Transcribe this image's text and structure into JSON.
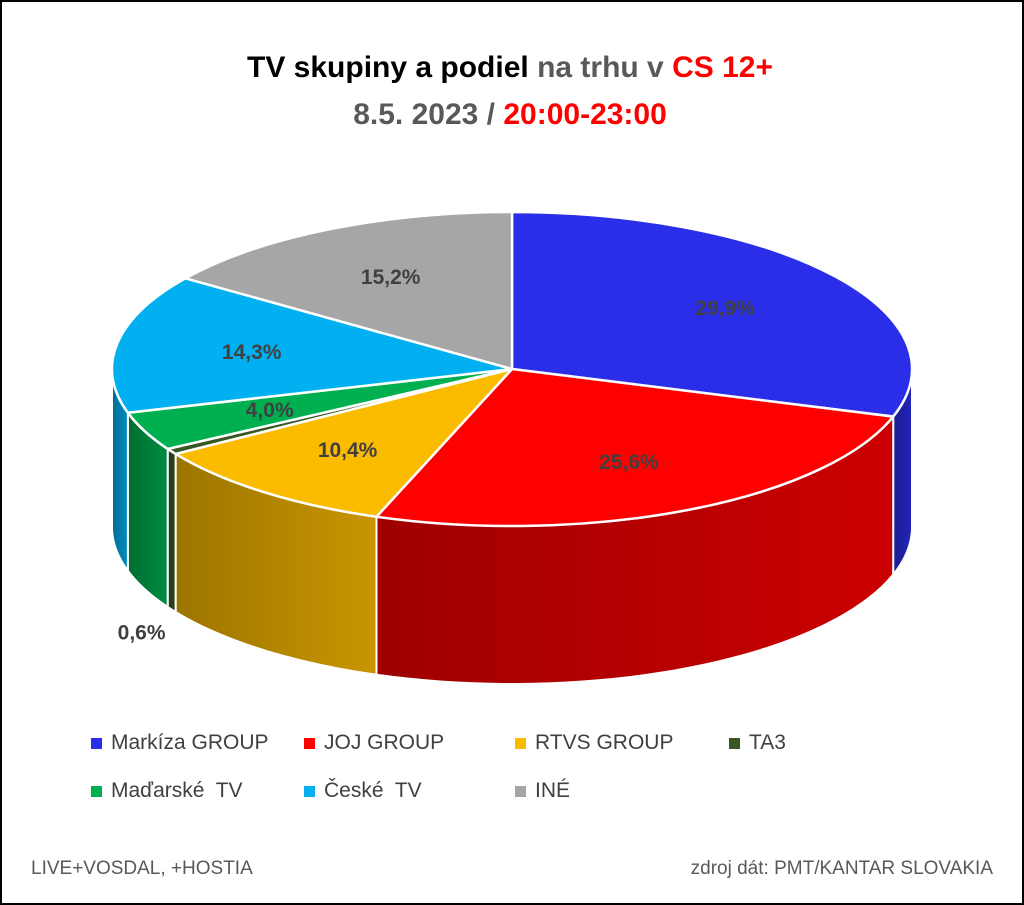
{
  "header": {
    "title_black": "TV skupiny a podiel",
    "title_gray": "na trhu v",
    "title_red": "CS 12+",
    "subtitle_gray": "8.5. 2023 /",
    "subtitle_red": "20:00-23:00"
  },
  "chart_data": {
    "type": "pie",
    "style": "3d",
    "legend_position": "bottom",
    "categories": [
      "Markíza GROUP",
      "JOJ GROUP",
      "RTVS GROUP",
      "TA3",
      "Maďarské  TV",
      "České  TV",
      "INÉ"
    ],
    "values": [
      29.9,
      25.6,
      10.4,
      0.6,
      4.0,
      14.3,
      15.2
    ],
    "data_labels": [
      "29,9%",
      "25,6%",
      "10,4%",
      "0,6%",
      "4,0%",
      "14,3%",
      "15,2%"
    ],
    "colors": [
      "#2b2ee8",
      "#ff0000",
      "#fbbc00",
      "#385723",
      "#00b050",
      "#00b0f0",
      "#a6a6a6"
    ],
    "start_angle_deg": 0,
    "direction": "clockwise"
  },
  "footer": {
    "left": "LIVE+VOSDAL, +HOSTIA",
    "right": "zdroj dát: PMT/KANTAR SLOVAKIA"
  }
}
